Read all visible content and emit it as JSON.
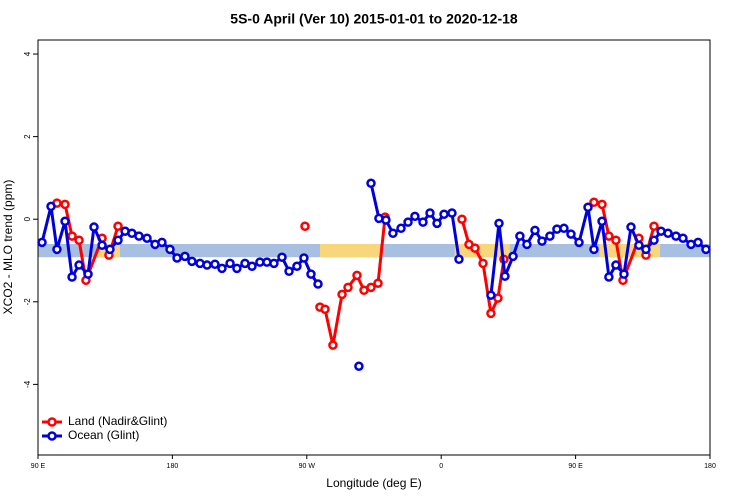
{
  "chart_data": {
    "type": "line",
    "title": "5S-0 April (Ver 10)   2015-01-01 to 2020-12-18",
    "xlabel": "Longitude (deg E)",
    "ylabel": "XCO2 - MLO trend (ppm)",
    "xlim": [
      90,
      540
    ],
    "ylim": [
      -5.71,
      4.34
    ],
    "xticks": [
      {
        "value": 90,
        "label": "90 E"
      },
      180,
      {
        "value": 270,
        "label": "90 W"
      },
      {
        "value": 360,
        "label": "0"
      },
      {
        "value": 450,
        "label": "90 E"
      },
      {
        "value": 540,
        "label": "180"
      }
    ],
    "yticks": [
      -4,
      -2,
      0,
      2,
      4
    ],
    "band": {
      "ylim": [
        -0.92,
        -0.6
      ],
      "color": "#a7bfe0"
    },
    "highlights": {
      "color": "#f8d77c",
      "ranges": [
        [
          129.5,
          144.9
        ],
        [
          278.8,
          319
        ],
        [
          369,
          406
        ],
        [
          466,
          506.5
        ]
      ]
    },
    "legend": "bottom-left",
    "series": [
      {
        "name": "Land (Nadir&Glint)",
        "color": "#ff0000",
        "x": [
          102.7,
          108.1,
          112.8,
          117.5,
          122.1,
          132.9,
          137.5,
          143.6,
          null,
          268.8,
          null,
          278.8,
          282.2,
          287.5,
          293.6,
          297.6,
          303.6,
          308.3,
          313.0,
          317.7,
          322.4,
          null,
          373.9,
          378.6,
          382.6,
          388.0,
          393.3,
          398.0,
          402.0,
          null,
          462.3,
          467.7,
          472.3,
          477.0,
          481.7,
          492.4,
          497.1,
          502.5
        ],
        "values": [
          0.39,
          0.36,
          -0.41,
          -0.51,
          -1.48,
          -0.46,
          -0.87,
          -0.17,
          null,
          -0.17,
          null,
          -2.13,
          -2.18,
          -3.05,
          -1.82,
          -1.65,
          -1.36,
          -1.72,
          -1.65,
          -1.55,
          0.05,
          null,
          0.0,
          -0.61,
          -0.7,
          -1.07,
          -2.28,
          -1.91,
          -0.97,
          null,
          0.41,
          0.36,
          -0.41,
          -0.51,
          -1.48,
          -0.46,
          -0.87,
          -0.17
        ]
      },
      {
        "name": "Ocean (Glint)",
        "color": "#0000dd",
        "x": [
          92.7,
          98.7,
          102.7,
          108.1,
          112.8,
          117.5,
          123.5,
          127.5,
          132.9,
          138.2,
          143.6,
          148.3,
          152.9,
          157.6,
          163.0,
          168.4,
          173.0,
          178.4,
          183.1,
          188.4,
          193.1,
          198.5,
          203.2,
          208.5,
          213.2,
          218.6,
          223.2,
          228.6,
          233.3,
          238.6,
          243.3,
          248.0,
          253.4,
          258.1,
          263.4,
          268.1,
          272.8,
          277.5,
          null,
          304.9,
          null,
          313.0,
          318.3,
          323.0,
          327.7,
          333.1,
          337.8,
          342.4,
          347.8,
          352.5,
          357.2,
          361.9,
          367.2,
          371.9,
          null,
          393.3,
          398.7,
          402.7,
          408.1,
          412.7,
          417.4,
          422.8,
          427.5,
          432.8,
          437.5,
          442.2,
          446.9,
          452.3,
          458.3,
          462.3,
          467.7,
          472.3,
          477.0,
          482.4,
          487.1,
          492.4,
          497.1,
          502.5,
          507.2,
          511.9,
          517.2,
          521.9,
          527.3,
          532.0,
          537.3
        ],
        "values": [
          -0.56,
          0.31,
          -0.73,
          -0.05,
          -1.4,
          -1.11,
          -1.33,
          -0.19,
          -0.63,
          -0.73,
          -0.51,
          -0.29,
          -0.34,
          -0.41,
          -0.46,
          -0.61,
          -0.56,
          -0.73,
          -0.94,
          -0.9,
          -1.02,
          -1.07,
          -1.11,
          -1.09,
          -1.19,
          -1.07,
          -1.19,
          -1.07,
          -1.14,
          -1.04,
          -1.04,
          -1.07,
          -0.92,
          -1.26,
          -1.14,
          -0.94,
          -1.33,
          -1.57,
          null,
          -3.56,
          null,
          0.87,
          0.02,
          -0.02,
          -0.34,
          -0.22,
          -0.07,
          0.07,
          -0.07,
          0.15,
          -0.1,
          0.12,
          0.15,
          -0.97,
          null,
          -1.84,
          -0.1,
          -1.38,
          -0.9,
          -0.41,
          -0.61,
          -0.27,
          -0.53,
          -0.41,
          -0.24,
          -0.22,
          -0.36,
          -0.56,
          0.29,
          -0.73,
          -0.05,
          -1.4,
          -1.11,
          -1.33,
          -0.19,
          -0.63,
          -0.73,
          -0.51,
          -0.29,
          -0.34,
          -0.41,
          -0.46,
          -0.61,
          -0.56,
          -0.73
        ]
      }
    ]
  }
}
